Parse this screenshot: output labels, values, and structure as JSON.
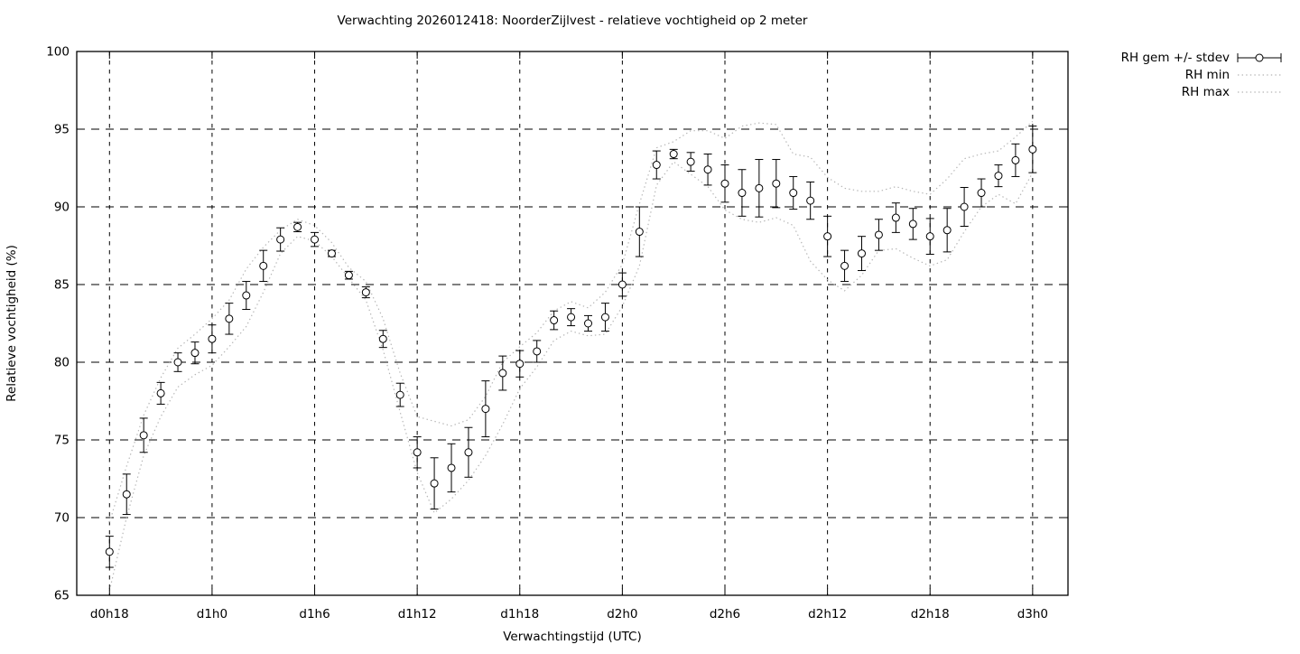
{
  "chart_data": {
    "type": "scatter",
    "title": "Verwachting 2026012418: NoorderZijlvest - relatieve vochtigheid op 2 meter",
    "xlabel": "Verwachtingstijd (UTC)",
    "ylabel": "Relatieve vochtigheid (%)",
    "ylim": [
      65,
      100
    ],
    "y_ticks": [
      65,
      70,
      75,
      80,
      85,
      90,
      95,
      100
    ],
    "x_tick_labels": [
      "d0h18",
      "d1h0",
      "d1h6",
      "d1h12",
      "d1h18",
      "d2h0",
      "d2h6",
      "d2h12",
      "d2h18",
      "d3h0"
    ],
    "x_tick_hours": [
      0,
      6,
      12,
      18,
      24,
      30,
      36,
      42,
      48,
      54
    ],
    "grid": true,
    "legend_position": "top-right-outside",
    "legend": [
      "RH gem +/- stdev",
      "RH min",
      "RH max"
    ],
    "x_hours": [
      0,
      1,
      2,
      3,
      4,
      5,
      6,
      7,
      8,
      9,
      10,
      11,
      12,
      13,
      14,
      15,
      16,
      17,
      18,
      19,
      20,
      21,
      22,
      23,
      24,
      25,
      26,
      27,
      28,
      29,
      30,
      31,
      32,
      33,
      34,
      35,
      36,
      37,
      38,
      39,
      40,
      41,
      42,
      43,
      44,
      45,
      46,
      47,
      48,
      49,
      50,
      51,
      52,
      53,
      54
    ],
    "series": [
      {
        "name": "RH gem",
        "style": "points-errorbars",
        "values": [
          67.8,
          71.5,
          75.3,
          78.0,
          80.0,
          80.6,
          81.5,
          82.8,
          84.3,
          86.2,
          87.9,
          88.7,
          87.9,
          87.0,
          85.6,
          84.5,
          81.5,
          77.9,
          74.2,
          72.2,
          73.2,
          74.2,
          77.0,
          79.3,
          79.9,
          80.7,
          82.7,
          82.9,
          82.5,
          82.9,
          85.0,
          88.4,
          92.7,
          93.4,
          92.9,
          92.4,
          91.5,
          90.9,
          91.2,
          91.5,
          90.9,
          90.4,
          88.1,
          86.2,
          87.0,
          88.2,
          89.3,
          88.9,
          88.1,
          88.5,
          90.0,
          90.9,
          92.0,
          93.0,
          93.7
        ],
        "stdev": [
          1.0,
          1.3,
          1.1,
          0.7,
          0.6,
          0.7,
          0.9,
          1.0,
          0.9,
          1.0,
          0.75,
          0.3,
          0.45,
          0.2,
          0.25,
          0.35,
          0.55,
          0.75,
          1.0,
          1.65,
          1.55,
          1.6,
          1.8,
          1.1,
          0.85,
          0.7,
          0.6,
          0.55,
          0.5,
          0.9,
          0.75,
          1.6,
          0.9,
          0.3,
          0.6,
          1.0,
          1.2,
          1.5,
          1.85,
          1.55,
          1.05,
          1.2,
          1.3,
          1.0,
          1.1,
          1.0,
          0.95,
          1.0,
          1.15,
          1.4,
          1.25,
          0.9,
          0.7,
          1.05,
          1.5
        ]
      },
      {
        "name": "RH min",
        "style": "dotted-line",
        "values": [
          65.3,
          70.0,
          74.0,
          76.5,
          78.4,
          79.2,
          79.8,
          81.0,
          82.3,
          84.5,
          87.0,
          88.1,
          87.8,
          86.8,
          85.4,
          84.0,
          80.8,
          76.8,
          72.9,
          70.3,
          71.2,
          72.4,
          74.0,
          76.0,
          78.3,
          79.7,
          81.4,
          82.0,
          81.7,
          81.8,
          83.6,
          86.2,
          91.4,
          92.9,
          92.1,
          91.3,
          89.8,
          89.2,
          89.0,
          89.3,
          88.8,
          86.5,
          85.3,
          84.6,
          85.6,
          87.2,
          87.3,
          86.7,
          86.2,
          86.6,
          88.4,
          90.0,
          90.8,
          90.2,
          92.2
        ]
      },
      {
        "name": "RH max",
        "style": "dotted-line",
        "values": [
          69.7,
          73.3,
          76.6,
          79.0,
          80.9,
          81.8,
          82.8,
          84.0,
          86.0,
          87.4,
          88.5,
          89.2,
          88.8,
          87.7,
          86.1,
          85.2,
          82.8,
          79.3,
          76.5,
          76.2,
          75.9,
          76.3,
          77.8,
          80.0,
          81.0,
          81.9,
          83.3,
          83.9,
          83.5,
          84.5,
          86.3,
          90.2,
          93.8,
          94.2,
          94.9,
          94.9,
          94.4,
          95.2,
          95.4,
          95.3,
          93.4,
          93.2,
          91.9,
          91.2,
          91.0,
          91.0,
          91.3,
          91.0,
          90.8,
          91.8,
          93.1,
          93.4,
          93.6,
          94.5,
          95.5
        ]
      }
    ],
    "colors": {
      "points": "#000000",
      "errorbars": "#000000",
      "minmax_dotted": "#b5b5b5",
      "grid": "#000000",
      "background": "#ffffff",
      "text": "#000000"
    }
  }
}
